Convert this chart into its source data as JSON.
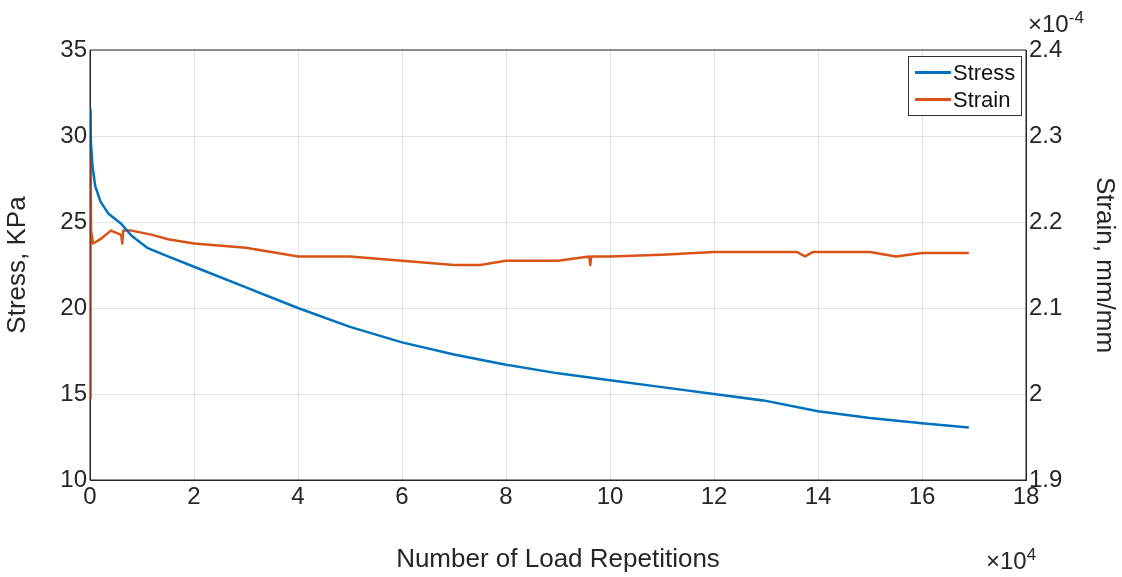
{
  "chart_data": {
    "type": "line",
    "xlabel": "Number of Load Repetitions",
    "ylabel": "Stress, KPa",
    "y2label": "Strain, mm/mm",
    "xlim": [
      0,
      18
    ],
    "xticks": [
      0,
      2,
      4,
      6,
      8,
      10,
      12,
      14,
      16,
      18
    ],
    "ylim": [
      10,
      35
    ],
    "yticks": [
      10,
      15,
      20,
      25,
      30,
      35
    ],
    "y2lim": [
      1.9,
      2.4
    ],
    "y2ticks": [
      1.9,
      2,
      2.1,
      2.2,
      2.3,
      2.4
    ],
    "annotations": [
      "×10$^{4}$",
      "×10$^{-4}$"
    ],
    "grid": true,
    "legend": "top right",
    "series": [
      {
        "name": "Stress",
        "color": "#0072bd",
        "x": [
          0,
          0.02,
          0.05,
          0.1,
          0.2,
          0.35,
          0.6,
          0.8,
          1.1,
          1.5,
          2,
          3,
          4,
          5,
          6,
          7,
          8,
          9,
          10,
          11,
          12,
          13,
          14,
          15,
          16,
          16.9
        ],
        "values": [
          31.7,
          29.5,
          28.2,
          27.1,
          26.2,
          25.5,
          24.9,
          24.2,
          23.5,
          23.0,
          22.4,
          21.2,
          20.0,
          18.9,
          18.0,
          17.3,
          16.7,
          16.2,
          15.8,
          15.4,
          15.0,
          14.6,
          14.0,
          13.6,
          13.3,
          13.05
        ]
      },
      {
        "name": "Strain",
        "color": "#d95319",
        "axis": "y2",
        "x": [
          0,
          0.01,
          0.02,
          0.06,
          0.2,
          0.4,
          0.6,
          0.62,
          0.64,
          0.8,
          1.2,
          1.5,
          2,
          3,
          4,
          5,
          6,
          7,
          7.5,
          8,
          9,
          9.6,
          9.62,
          9.64,
          10,
          11,
          12,
          13,
          13.6,
          13.75,
          13.9,
          15,
          15.5,
          16,
          16.9
        ],
        "values": [
          1.995,
          2.33,
          2.19,
          2.175,
          2.18,
          2.19,
          2.185,
          2.175,
          2.19,
          2.19,
          2.185,
          2.18,
          2.175,
          2.17,
          2.16,
          2.16,
          2.155,
          2.15,
          2.15,
          2.155,
          2.155,
          2.16,
          2.15,
          2.16,
          2.16,
          2.162,
          2.165,
          2.165,
          2.165,
          2.16,
          2.165,
          2.165,
          2.16,
          2.164,
          2.164
        ]
      }
    ]
  }
}
